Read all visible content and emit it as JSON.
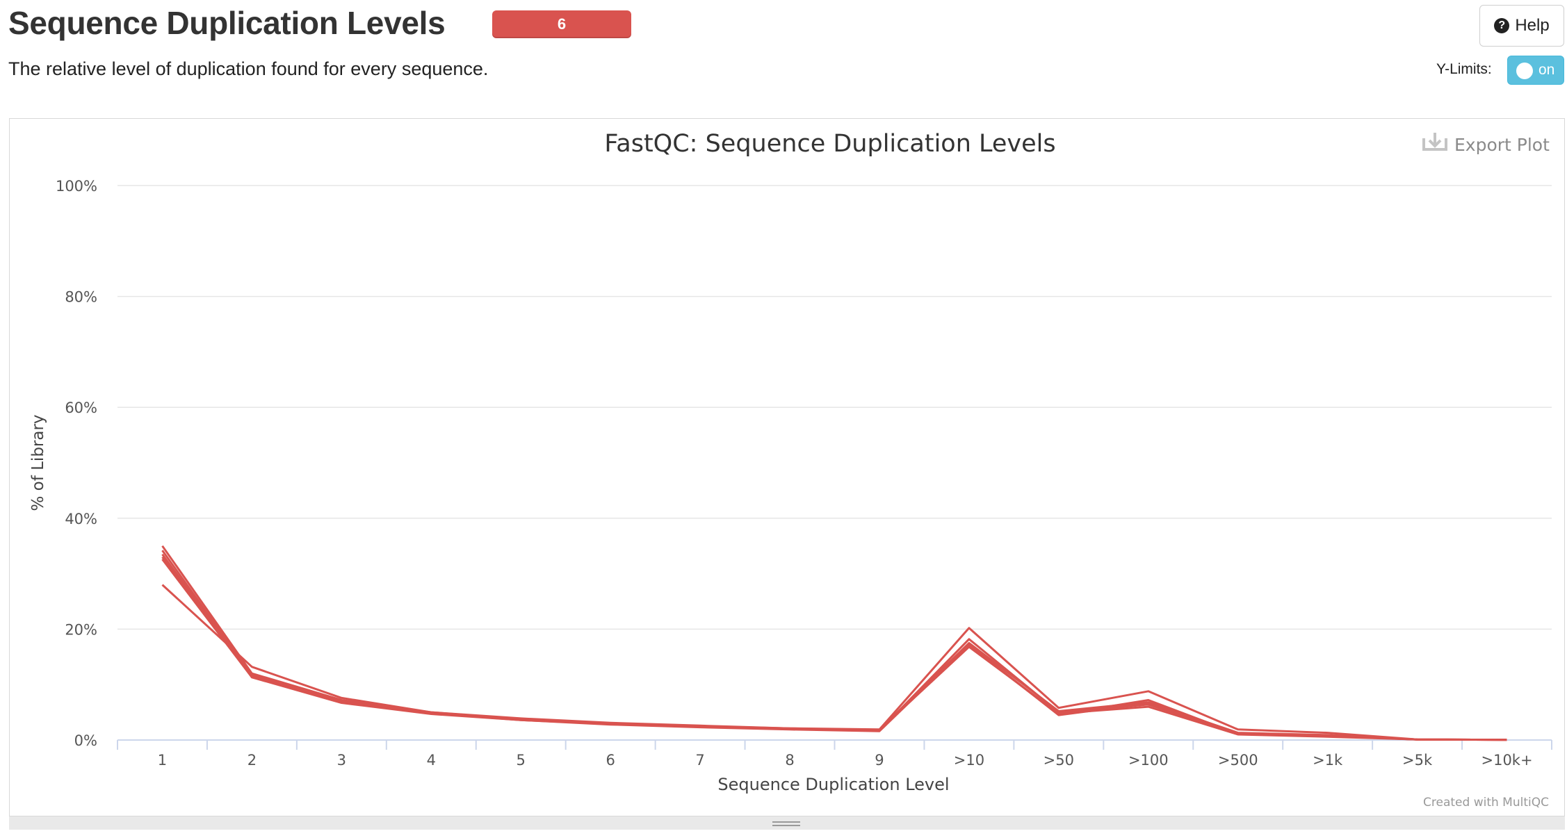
{
  "header": {
    "title": "Sequence Duplication Levels",
    "badge": "6",
    "subtitle": "The relative level of duplication found for every sequence.",
    "help_label": "Help",
    "ylimits_label": "Y-Limits:",
    "ylimits_state": "on"
  },
  "plot": {
    "export_label": "Export Plot",
    "credit": "Created with MultiQC"
  },
  "colors": {
    "series": "#d9534f",
    "badge": "#d9534f",
    "toggle": "#5bc0de"
  },
  "chart_data": {
    "type": "line",
    "title": "FastQC: Sequence Duplication Levels",
    "xlabel": "Sequence Duplication Level",
    "ylabel": "% of Library",
    "categories": [
      "1",
      "2",
      "3",
      "4",
      "5",
      "6",
      "7",
      "8",
      "9",
      ">10",
      ">50",
      ">100",
      ">500",
      ">1k",
      ">5k",
      ">10k+"
    ],
    "ylim": [
      0,
      100
    ],
    "yticks": [
      "0%",
      "20%",
      "40%",
      "60%",
      "80%",
      "100%"
    ],
    "grid": true,
    "legend": "none",
    "series": [
      {
        "values": [
          35.0,
          12.0,
          7.2,
          5.0,
          3.8,
          3.0,
          2.5,
          2.1,
          1.8,
          17.5,
          5.2,
          6.8,
          1.3,
          0.9,
          0.1,
          0.05
        ]
      },
      {
        "values": [
          34.2,
          11.6,
          6.9,
          4.9,
          3.7,
          2.9,
          2.4,
          2.0,
          1.7,
          18.2,
          5.0,
          6.4,
          1.2,
          0.8,
          0.1,
          0.05
        ]
      },
      {
        "values": [
          33.5,
          11.4,
          6.8,
          4.8,
          3.6,
          2.9,
          2.4,
          2.0,
          1.7,
          17.0,
          4.6,
          7.2,
          1.1,
          0.7,
          0.1,
          0.05
        ]
      },
      {
        "values": [
          33.0,
          11.8,
          7.0,
          4.9,
          3.7,
          3.0,
          2.4,
          2.0,
          1.8,
          16.8,
          4.8,
          6.0,
          1.0,
          0.6,
          0.1,
          0.05
        ]
      },
      {
        "values": [
          32.6,
          11.3,
          6.7,
          4.7,
          3.6,
          2.8,
          2.3,
          1.9,
          1.6,
          17.2,
          4.5,
          6.6,
          1.2,
          0.8,
          0.1,
          0.05
        ]
      },
      {
        "values": [
          28.0,
          13.2,
          7.6,
          5.0,
          3.9,
          3.1,
          2.6,
          2.1,
          1.9,
          20.2,
          5.8,
          8.8,
          1.9,
          1.3,
          0.1,
          0.05
        ]
      }
    ]
  }
}
